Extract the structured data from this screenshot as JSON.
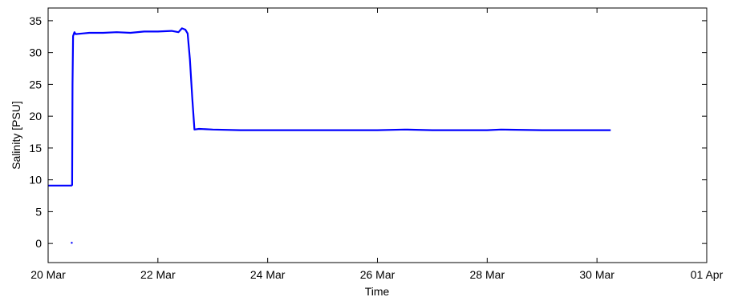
{
  "chart_data": {
    "type": "line",
    "title": "",
    "xlabel": "Time",
    "ylabel": "Salinity [PSU]",
    "xlim": [
      "2000-03-20",
      "2000-04-01"
    ],
    "ylim": [
      -3,
      37
    ],
    "grid": false,
    "x_ticks": [
      {
        "date": "2000-03-20",
        "label": "20 Mar"
      },
      {
        "date": "2000-03-22",
        "label": "22 Mar"
      },
      {
        "date": "2000-03-24",
        "label": "24 Mar"
      },
      {
        "date": "2000-03-26",
        "label": "26 Mar"
      },
      {
        "date": "2000-03-28",
        "label": "28 Mar"
      },
      {
        "date": "2000-03-30",
        "label": "30 Mar"
      },
      {
        "date": "2000-04-01",
        "label": "01 Apr"
      }
    ],
    "y_ticks": [
      0,
      5,
      10,
      15,
      20,
      25,
      30,
      35
    ],
    "series": [
      {
        "color": "#0000ff",
        "points": [
          [
            "2000-03-20T00:00",
            9.1
          ],
          [
            "2000-03-20T10:10",
            9.1
          ],
          [
            "2000-03-20T10:30",
            9.2
          ],
          [
            "2000-03-20T10:40",
            25.0
          ],
          [
            "2000-03-20T10:55",
            32.6
          ],
          [
            "2000-03-20T11:30",
            33.2
          ],
          [
            "2000-03-20T12:00",
            32.9
          ],
          [
            "2000-03-20T15:00",
            33.0
          ],
          [
            "2000-03-20T18:00",
            33.1
          ],
          [
            "2000-03-21T00:00",
            33.1
          ],
          [
            "2000-03-21T06:00",
            33.2
          ],
          [
            "2000-03-21T12:00",
            33.1
          ],
          [
            "2000-03-21T18:00",
            33.3
          ],
          [
            "2000-03-22T00:00",
            33.3
          ],
          [
            "2000-03-22T06:00",
            33.4
          ],
          [
            "2000-03-22T09:00",
            33.2
          ],
          [
            "2000-03-22T10:30",
            33.8
          ],
          [
            "2000-03-22T12:00",
            33.6
          ],
          [
            "2000-03-22T13:00",
            33.0
          ],
          [
            "2000-03-22T14:00",
            29.0
          ],
          [
            "2000-03-22T15:00",
            23.0
          ],
          [
            "2000-03-22T16:00",
            17.9
          ],
          [
            "2000-03-22T18:00",
            18.0
          ],
          [
            "2000-03-23T00:00",
            17.9
          ],
          [
            "2000-03-23T12:00",
            17.8
          ],
          [
            "2000-03-24T00:00",
            17.8
          ],
          [
            "2000-03-25T00:00",
            17.8
          ],
          [
            "2000-03-26T00:00",
            17.8
          ],
          [
            "2000-03-26T12:00",
            17.9
          ],
          [
            "2000-03-27T00:00",
            17.8
          ],
          [
            "2000-03-28T00:00",
            17.8
          ],
          [
            "2000-03-28T06:00",
            17.9
          ],
          [
            "2000-03-29T00:00",
            17.8
          ],
          [
            "2000-03-30T00:00",
            17.8
          ],
          [
            "2000-03-30T06:00",
            17.8
          ]
        ]
      }
    ],
    "outliers": [
      [
        "2000-03-20T10:20",
        0.1
      ]
    ]
  }
}
